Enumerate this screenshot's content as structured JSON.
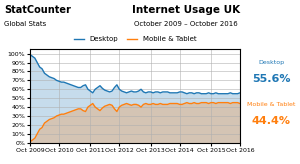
{
  "chart_data": {
    "type": "area",
    "title": "Internet Usage UK",
    "subtitle": "October 2009 – October 2016",
    "annotations": [
      "StatCounter",
      "Global Stats",
      "Desktop",
      "55.6%",
      "Mobile & Tablet",
      "44.4%"
    ],
    "categories": [
      "Oct 2009",
      null,
      null,
      null,
      null,
      null,
      null,
      null,
      null,
      null,
      null,
      null,
      "Oct 2010",
      null,
      null,
      null,
      null,
      null,
      null,
      null,
      null,
      null,
      null,
      null,
      null,
      "Oct 2011",
      null,
      null,
      null,
      null,
      null,
      null,
      null,
      null,
      null,
      null,
      null,
      "Oct 2012",
      null,
      null,
      null,
      null,
      null,
      null,
      null,
      null,
      null,
      null,
      null,
      null,
      "Oct 2013",
      null,
      null,
      null,
      null,
      null,
      null,
      null,
      null,
      null,
      null,
      null,
      "Oct 2014",
      null,
      null,
      null,
      null,
      null,
      null,
      null,
      null,
      null,
      null,
      null,
      null,
      "Oct 2015",
      null,
      null,
      null,
      null,
      null,
      null,
      null,
      null,
      null,
      null,
      null,
      "Oct 2016"
    ],
    "series": [
      {
        "name": "Desktop",
        "values": [
          99,
          97,
          95,
          90,
          85,
          83,
          78,
          76,
          74,
          73,
          72,
          70,
          69,
          68,
          68,
          67,
          66,
          65,
          64,
          63,
          62,
          62,
          64,
          65,
          60,
          58,
          56,
          60,
          62,
          64,
          61,
          59,
          58,
          57,
          58,
          62,
          65,
          60,
          58,
          57,
          56,
          57,
          58,
          57,
          57,
          58,
          60,
          57,
          56,
          57,
          57,
          56,
          57,
          57,
          56,
          57,
          57,
          57,
          56,
          56,
          56,
          56,
          57,
          57,
          56,
          55,
          56,
          56,
          55,
          56,
          56,
          55,
          55,
          55,
          56,
          55,
          55,
          56,
          55,
          55,
          55,
          55,
          55,
          56,
          55,
          55,
          55,
          56
        ]
      },
      {
        "name": "Mobile & Tablet",
        "values": [
          1,
          3,
          5,
          10,
          15,
          17,
          22,
          24,
          26,
          27,
          28,
          30,
          31,
          32,
          32,
          33,
          34,
          35,
          36,
          37,
          38,
          38,
          36,
          35,
          40,
          42,
          44,
          40,
          38,
          36,
          39,
          41,
          42,
          43,
          42,
          38,
          35,
          40,
          42,
          43,
          44,
          43,
          42,
          43,
          43,
          42,
          40,
          43,
          44,
          43,
          43,
          44,
          43,
          43,
          44,
          43,
          43,
          43,
          44,
          44,
          44,
          44,
          43,
          43,
          44,
          45,
          44,
          44,
          45,
          44,
          44,
          45,
          45,
          45,
          44,
          45,
          45,
          44,
          45,
          45,
          45,
          45,
          45,
          44,
          45,
          45,
          45,
          44
        ]
      }
    ],
    "ylim": [
      0,
      105
    ],
    "yticks": [
      {
        "value": 0,
        "label": "0%"
      },
      {
        "value": 10,
        "label": "10%"
      },
      {
        "value": 20,
        "label": "20%"
      },
      {
        "value": 30,
        "label": "30%"
      },
      {
        "value": 40,
        "label": "40%"
      },
      {
        "value": 50,
        "label": "50%"
      },
      {
        "value": 60,
        "label": "60%"
      },
      {
        "value": 70,
        "label": "70%"
      },
      {
        "value": 80,
        "label": "80%"
      },
      {
        "value": 90,
        "label": "90%"
      },
      {
        "value": 100,
        "label": "100%"
      }
    ],
    "grid": true,
    "legend": "upper center"
  }
}
